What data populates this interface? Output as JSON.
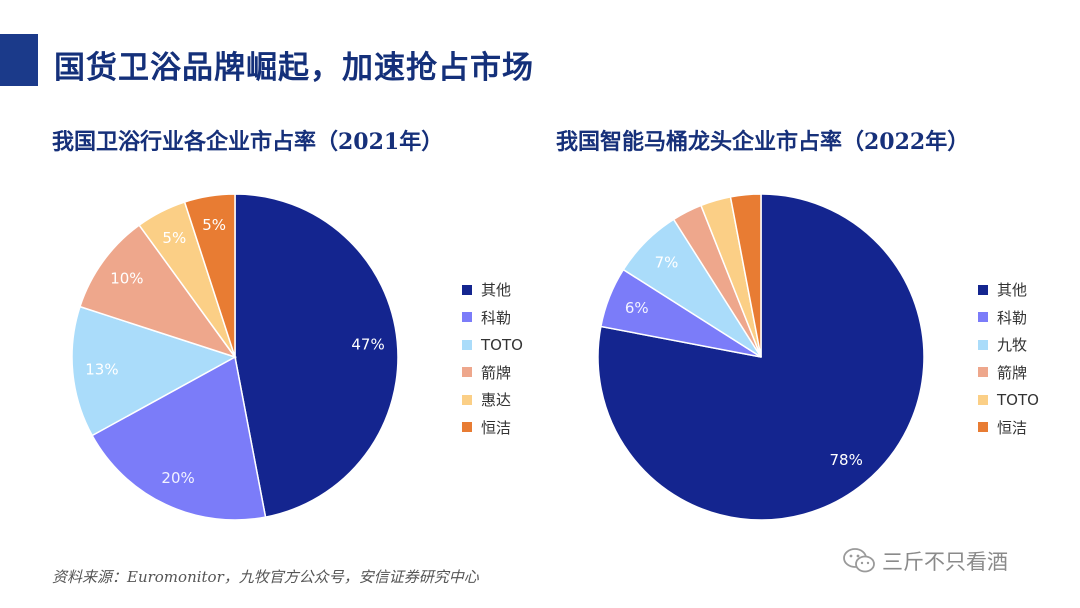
{
  "page": {
    "title": "国货卫浴品牌崛起，加速抢占市场",
    "source": "资料来源：Euromonitor，九牧官方公众号，安信证券研究中心",
    "watermark": "三斤不只看酒",
    "watermark_icon": "wechat-icon",
    "accent_color": "#1b3a8a"
  },
  "chart_data": [
    {
      "type": "pie",
      "title": "我国卫浴行业各企业市占率（2021年）",
      "legend_position": "right",
      "slices": [
        {
          "label": "其他",
          "value": 47,
          "display": "47%",
          "color": "#14258f"
        },
        {
          "label": "科勒",
          "value": 20,
          "display": "20%",
          "color": "#7b7cf9"
        },
        {
          "label": "TOTO",
          "value": 13,
          "display": "13%",
          "color": "#aadcfa"
        },
        {
          "label": "箭牌",
          "value": 10,
          "display": "10%",
          "color": "#eea78c"
        },
        {
          "label": "惠达",
          "value": 5,
          "display": "5%",
          "color": "#fbcf86"
        },
        {
          "label": "恒洁",
          "value": 5,
          "display": "5%",
          "color": "#e87c33"
        }
      ]
    },
    {
      "type": "pie",
      "title": "我国智能马桶龙头企业市占率（2022年）",
      "legend_position": "right",
      "slices": [
        {
          "label": "其他",
          "value": 78,
          "display": "78%",
          "color": "#14258f"
        },
        {
          "label": "科勒",
          "value": 6,
          "display": "6%",
          "color": "#7b7cf9"
        },
        {
          "label": "九牧",
          "value": 7,
          "display": "7%",
          "color": "#aadcfa"
        },
        {
          "label": "箭牌",
          "value": 3,
          "display": "",
          "color": "#eea78c"
        },
        {
          "label": "TOTO",
          "value": 3,
          "display": "",
          "color": "#fbcf86"
        },
        {
          "label": "恒洁",
          "value": 3,
          "display": "",
          "color": "#e87c33"
        }
      ]
    }
  ]
}
